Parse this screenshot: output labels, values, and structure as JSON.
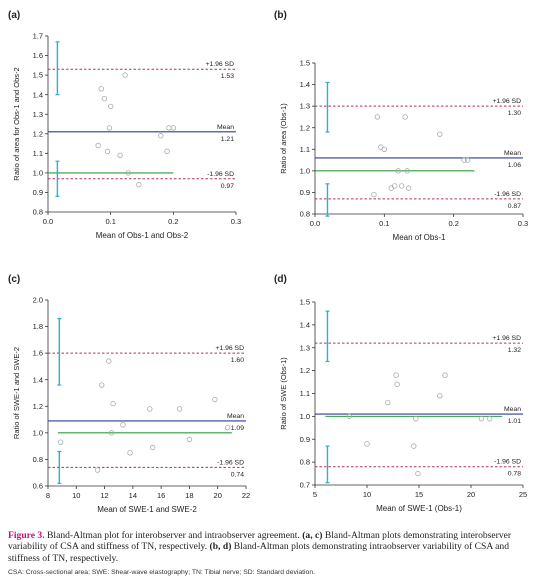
{
  "caption": {
    "figure_label": "Figure 3.",
    "s1": " Bland-Altman plot for interobserver and intraobserver agreement. ",
    "b1": "(a, c)",
    "s2": " Bland-Altman plots demonstrating interobserver variability of CSA and stiffness of TN, respectively. ",
    "b2": "(b, d)",
    "s3": " Bland-Altman plots demonstrating intraobserver variability of CSA and stiffness of TN, respectively.",
    "abbreviations": "CSA: Cross-sectional area; SWE: Shear-wave elastography; TN: Tibial nerve; SD: Standard deviation."
  },
  "colors": {
    "mean_line": "#2b3f8f",
    "zero_line": "#2e9e3a",
    "sd_line": "#b0306a",
    "error_bar": "#28b3c9",
    "marker": "#aaaaaa",
    "caption_label": "#c0127a"
  },
  "chart_data": [
    {
      "panel": "(a)",
      "type": "scatter",
      "xlabel": "Mean of Obs-1 and Obs-2",
      "ylabel": "Ratio of area for Obs-1 and Obs-2",
      "xlim": [
        0,
        0.3
      ],
      "ylim": [
        0.8,
        1.7
      ],
      "xticks": [
        "0.0",
        "0.1",
        "0.2",
        "0.3"
      ],
      "yticks": [
        "0.8",
        "0.9",
        "1.0",
        "1.1",
        "1.2",
        "1.3",
        "1.4",
        "1.5",
        "1.6",
        "1.7"
      ],
      "upper_sd": {
        "label": "+1.96 SD",
        "value": 1.53,
        "display": "1.53"
      },
      "mean": {
        "label": "Mean",
        "value": 1.21,
        "display": "1.21"
      },
      "lower_sd": {
        "label": "-1.96 SD",
        "value": 0.97,
        "display": "0.97"
      },
      "equality_line": {
        "value": 1.0,
        "x_range": [
          0,
          0.2
        ]
      },
      "error_bars": [
        {
          "x": 0.015,
          "low": 1.4,
          "high": 1.67
        },
        {
          "x": 0.015,
          "low": 0.88,
          "high": 1.06
        }
      ],
      "points": [
        {
          "x": 0.08,
          "y": 1.14
        },
        {
          "x": 0.085,
          "y": 1.43
        },
        {
          "x": 0.09,
          "y": 1.38
        },
        {
          "x": 0.095,
          "y": 1.11
        },
        {
          "x": 0.098,
          "y": 1.23
        },
        {
          "x": 0.1,
          "y": 1.34
        },
        {
          "x": 0.115,
          "y": 1.09
        },
        {
          "x": 0.123,
          "y": 1.5
        },
        {
          "x": 0.128,
          "y": 1.0
        },
        {
          "x": 0.145,
          "y": 0.94
        },
        {
          "x": 0.18,
          "y": 1.19
        },
        {
          "x": 0.19,
          "y": 1.11
        },
        {
          "x": 0.193,
          "y": 1.23
        },
        {
          "x": 0.2,
          "y": 1.23
        }
      ]
    },
    {
      "panel": "(b)",
      "type": "scatter",
      "xlabel": "Mean of Obs-1",
      "ylabel": "Ratio of area (Obs-1)",
      "xlim": [
        0,
        0.3
      ],
      "ylim": [
        0.8,
        1.5
      ],
      "xticks": [
        "0.0",
        "0.1",
        "0.2",
        "0.3"
      ],
      "yticks": [
        "0.8",
        "0.9",
        "1.0",
        "1.1",
        "1.2",
        "1.3",
        "1.4",
        "1.5"
      ],
      "upper_sd": {
        "label": "+1.96 SD",
        "value": 1.3,
        "display": "1.30"
      },
      "mean": {
        "label": "Mean",
        "value": 1.06,
        "display": "1.06"
      },
      "lower_sd": {
        "label": "-1.96 SD",
        "value": 0.87,
        "display": "0.87"
      },
      "equality_line": {
        "value": 1.0,
        "x_range": [
          0,
          0.23
        ]
      },
      "error_bars": [
        {
          "x": 0.018,
          "low": 1.18,
          "high": 1.41
        },
        {
          "x": 0.018,
          "low": 0.79,
          "high": 0.94
        }
      ],
      "points": [
        {
          "x": 0.085,
          "y": 0.89
        },
        {
          "x": 0.09,
          "y": 1.25
        },
        {
          "x": 0.095,
          "y": 1.11
        },
        {
          "x": 0.1,
          "y": 1.1
        },
        {
          "x": 0.11,
          "y": 0.92
        },
        {
          "x": 0.115,
          "y": 0.93
        },
        {
          "x": 0.12,
          "y": 1.0
        },
        {
          "x": 0.125,
          "y": 0.93
        },
        {
          "x": 0.13,
          "y": 1.25
        },
        {
          "x": 0.133,
          "y": 1.0
        },
        {
          "x": 0.135,
          "y": 0.92
        },
        {
          "x": 0.18,
          "y": 1.17
        },
        {
          "x": 0.215,
          "y": 1.05
        },
        {
          "x": 0.22,
          "y": 1.05
        }
      ]
    },
    {
      "panel": "(c)",
      "type": "scatter",
      "xlabel": "Mean of SWE-1 and SWE-2",
      "ylabel": "Ratio of SWE-1 and SWE-2",
      "xlim": [
        8,
        22
      ],
      "ylim": [
        0.6,
        2.0
      ],
      "xticks": [
        "8",
        "10",
        "12",
        "14",
        "16",
        "18",
        "20",
        "22"
      ],
      "yticks": [
        "0.6",
        "0.8",
        "1.0",
        "1.2",
        "1.4",
        "1.6",
        "1.8",
        "2.0"
      ],
      "upper_sd": {
        "label": "+1.96 SD",
        "value": 1.6,
        "display": "1.60"
      },
      "mean": {
        "label": "Mean",
        "value": 1.09,
        "display": "1.09"
      },
      "lower_sd": {
        "label": "-1.96 SD",
        "value": 0.74,
        "display": "0.74"
      },
      "equality_line": {
        "value": 1.0,
        "x_range": [
          8.7,
          21
        ]
      },
      "error_bars": [
        {
          "x": 8.8,
          "low": 1.36,
          "high": 1.86
        },
        {
          "x": 8.8,
          "low": 0.62,
          "high": 0.86
        }
      ],
      "points": [
        {
          "x": 8.9,
          "y": 0.93
        },
        {
          "x": 11.5,
          "y": 0.72
        },
        {
          "x": 11.8,
          "y": 1.36
        },
        {
          "x": 12.3,
          "y": 1.54
        },
        {
          "x": 12.5,
          "y": 1.0
        },
        {
          "x": 12.6,
          "y": 1.22
        },
        {
          "x": 13.3,
          "y": 1.06
        },
        {
          "x": 13.8,
          "y": 0.85
        },
        {
          "x": 15.2,
          "y": 1.18
        },
        {
          "x": 15.4,
          "y": 0.89
        },
        {
          "x": 17.3,
          "y": 1.18
        },
        {
          "x": 18.0,
          "y": 0.95
        },
        {
          "x": 19.8,
          "y": 1.25
        },
        {
          "x": 20.7,
          "y": 1.04
        }
      ]
    },
    {
      "panel": "(d)",
      "type": "scatter",
      "xlabel": "Mean of SWE-1 (Obs-1)",
      "ylabel": "Ratio of SWE (Obs-1)",
      "xlim": [
        5,
        25
      ],
      "ylim": [
        0.7,
        1.5
      ],
      "xticks": [
        "5",
        "10",
        "15",
        "20",
        "25"
      ],
      "yticks": [
        "0.7",
        "0.8",
        "0.9",
        "1.0",
        "1.1",
        "1.2",
        "1.3",
        "1.4",
        "1.5"
      ],
      "upper_sd": {
        "label": "+1.96 SD",
        "value": 1.32,
        "display": "1.32"
      },
      "mean": {
        "label": "Mean",
        "value": 1.01,
        "display": "1.01"
      },
      "lower_sd": {
        "label": "-1.96 SD",
        "value": 0.78,
        "display": "0.78"
      },
      "equality_line": {
        "value": 1.0,
        "x_range": [
          6,
          23
        ]
      },
      "error_bars": [
        {
          "x": 6.2,
          "low": 1.24,
          "high": 1.46
        },
        {
          "x": 6.2,
          "low": 0.71,
          "high": 0.87
        }
      ],
      "points": [
        {
          "x": 8.3,
          "y": 1.0
        },
        {
          "x": 10.0,
          "y": 0.88
        },
        {
          "x": 12.0,
          "y": 1.06
        },
        {
          "x": 12.8,
          "y": 1.18
        },
        {
          "x": 12.9,
          "y": 1.14
        },
        {
          "x": 14.5,
          "y": 0.87
        },
        {
          "x": 14.7,
          "y": 0.99
        },
        {
          "x": 14.9,
          "y": 0.75
        },
        {
          "x": 17.0,
          "y": 1.09
        },
        {
          "x": 17.5,
          "y": 1.18
        },
        {
          "x": 21.0,
          "y": 0.99
        },
        {
          "x": 21.8,
          "y": 0.99
        }
      ]
    }
  ]
}
